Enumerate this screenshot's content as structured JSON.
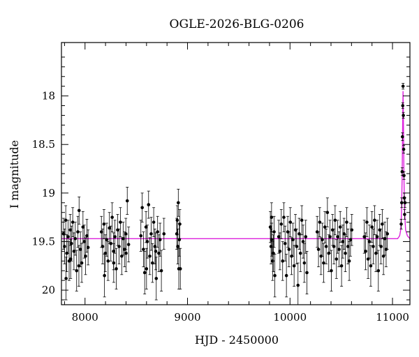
{
  "chart_data": {
    "type": "scatter",
    "title": "OGLE-2026-BLG-0206",
    "xlabel": "HJD - 2450000",
    "ylabel": "I magnitude",
    "xlim": [
      7770,
      11170
    ],
    "ylim": [
      20.15,
      17.45
    ],
    "y_inverted": true,
    "x_ticks": [
      8000,
      9000,
      10000,
      11000
    ],
    "x_tick_labels": [
      "8000",
      "9000",
      "10000",
      "11000"
    ],
    "y_ticks": [
      18,
      18.5,
      19,
      19.5,
      20
    ],
    "y_tick_labels": [
      "18",
      "18.5",
      "19",
      "19.5",
      "20"
    ],
    "grid": false,
    "legend": "none",
    "baseline_magnitude": 19.47,
    "series": [
      {
        "kind": "points_with_errorbars",
        "color": "#000000",
        "points": [
          {
            "x": 7790,
            "y": 19.42,
            "err": 0.16
          },
          {
            "x": 7800,
            "y": 19.55,
            "err": 0.18
          },
          {
            "x": 7812,
            "y": 19.28,
            "err": 0.15
          },
          {
            "x": 7822,
            "y": 19.62,
            "err": 0.19
          },
          {
            "x": 7834,
            "y": 19.45,
            "err": 0.17
          },
          {
            "x": 7845,
            "y": 19.7,
            "err": 0.2
          },
          {
            "x": 7856,
            "y": 19.38,
            "err": 0.16
          },
          {
            "x": 7868,
            "y": 19.52,
            "err": 0.18
          },
          {
            "x": 7880,
            "y": 19.3,
            "err": 0.15
          },
          {
            "x": 7892,
            "y": 19.6,
            "err": 0.19
          },
          {
            "x": 7905,
            "y": 19.47,
            "err": 0.17
          },
          {
            "x": 7918,
            "y": 19.8,
            "err": 0.21
          },
          {
            "x": 7930,
            "y": 19.4,
            "err": 0.16
          },
          {
            "x": 7942,
            "y": 19.18,
            "err": 0.14
          },
          {
            "x": 7955,
            "y": 19.58,
            "err": 0.18
          },
          {
            "x": 7968,
            "y": 19.72,
            "err": 0.2
          },
          {
            "x": 7980,
            "y": 19.35,
            "err": 0.16
          },
          {
            "x": 7993,
            "y": 19.5,
            "err": 0.17
          },
          {
            "x": 8005,
            "y": 19.65,
            "err": 0.19
          },
          {
            "x": 8018,
            "y": 19.44,
            "err": 0.17
          },
          {
            "x": 8030,
            "y": 19.56,
            "err": 0.18
          },
          {
            "x": 7815,
            "y": 19.88,
            "err": 0.22
          },
          {
            "x": 7860,
            "y": 19.68,
            "err": 0.2
          },
          {
            "x": 7940,
            "y": 19.75,
            "err": 0.21
          },
          {
            "x": 8160,
            "y": 19.4,
            "err": 0.16
          },
          {
            "x": 8172,
            "y": 19.55,
            "err": 0.18
          },
          {
            "x": 8185,
            "y": 19.32,
            "err": 0.15
          },
          {
            "x": 8198,
            "y": 19.62,
            "err": 0.19
          },
          {
            "x": 8212,
            "y": 19.48,
            "err": 0.17
          },
          {
            "x": 8225,
            "y": 19.7,
            "err": 0.2
          },
          {
            "x": 8238,
            "y": 19.36,
            "err": 0.16
          },
          {
            "x": 8252,
            "y": 19.52,
            "err": 0.18
          },
          {
            "x": 8265,
            "y": 19.25,
            "err": 0.15
          },
          {
            "x": 8278,
            "y": 19.6,
            "err": 0.19
          },
          {
            "x": 8292,
            "y": 19.45,
            "err": 0.17
          },
          {
            "x": 8305,
            "y": 19.78,
            "err": 0.21
          },
          {
            "x": 8318,
            "y": 19.38,
            "err": 0.16
          },
          {
            "x": 8332,
            "y": 19.55,
            "err": 0.18
          },
          {
            "x": 8345,
            "y": 19.3,
            "err": 0.15
          },
          {
            "x": 8358,
            "y": 19.65,
            "err": 0.19
          },
          {
            "x": 8372,
            "y": 19.47,
            "err": 0.17
          },
          {
            "x": 8385,
            "y": 19.58,
            "err": 0.18
          },
          {
            "x": 8398,
            "y": 19.42,
            "err": 0.16
          },
          {
            "x": 8412,
            "y": 19.08,
            "err": 0.14
          },
          {
            "x": 8425,
            "y": 19.53,
            "err": 0.18
          },
          {
            "x": 8190,
            "y": 19.85,
            "err": 0.22
          },
          {
            "x": 8280,
            "y": 19.72,
            "err": 0.2
          },
          {
            "x": 8400,
            "y": 19.62,
            "err": 0.19
          },
          {
            "x": 8545,
            "y": 19.44,
            "err": 0.16
          },
          {
            "x": 8558,
            "y": 19.15,
            "err": 0.15
          },
          {
            "x": 8570,
            "y": 19.58,
            "err": 0.18
          },
          {
            "x": 8582,
            "y": 19.82,
            "err": 0.22
          },
          {
            "x": 8595,
            "y": 19.35,
            "err": 0.16
          },
          {
            "x": 8608,
            "y": 19.5,
            "err": 0.17
          },
          {
            "x": 8620,
            "y": 19.12,
            "err": 0.14
          },
          {
            "x": 8632,
            "y": 19.65,
            "err": 0.19
          },
          {
            "x": 8645,
            "y": 19.42,
            "err": 0.17
          },
          {
            "x": 8658,
            "y": 19.72,
            "err": 0.2
          },
          {
            "x": 8670,
            "y": 19.3,
            "err": 0.15
          },
          {
            "x": 8682,
            "y": 19.55,
            "err": 0.18
          },
          {
            "x": 8695,
            "y": 19.88,
            "err": 0.22
          },
          {
            "x": 8708,
            "y": 19.4,
            "err": 0.16
          },
          {
            "x": 8720,
            "y": 19.62,
            "err": 0.19
          },
          {
            "x": 8732,
            "y": 19.48,
            "err": 0.17
          },
          {
            "x": 8745,
            "y": 19.8,
            "err": 0.21
          },
          {
            "x": 8770,
            "y": 19.42,
            "err": 0.16
          },
          {
            "x": 8600,
            "y": 19.78,
            "err": 0.21
          },
          {
            "x": 8690,
            "y": 19.6,
            "err": 0.19
          },
          {
            "x": 8895,
            "y": 19.42,
            "err": 0.16
          },
          {
            "x": 8900,
            "y": 19.28,
            "err": 0.15
          },
          {
            "x": 8905,
            "y": 19.55,
            "err": 0.18
          },
          {
            "x": 8910,
            "y": 19.1,
            "err": 0.14
          },
          {
            "x": 8915,
            "y": 19.78,
            "err": 0.21
          },
          {
            "x": 8920,
            "y": 19.48,
            "err": 0.17
          },
          {
            "x": 8925,
            "y": 19.32,
            "err": 0.15
          },
          {
            "x": 8930,
            "y": 19.78,
            "err": 0.21
          },
          {
            "x": 9808,
            "y": 19.35,
            "err": 0.16
          },
          {
            "x": 9815,
            "y": 19.55,
            "err": 0.18
          },
          {
            "x": 9822,
            "y": 19.48,
            "err": 0.17
          },
          {
            "x": 9830,
            "y": 19.7,
            "err": 0.2
          },
          {
            "x": 9838,
            "y": 19.62,
            "err": 0.19
          },
          {
            "x": 9845,
            "y": 19.4,
            "err": 0.16
          },
          {
            "x": 9852,
            "y": 19.85,
            "err": 0.22
          },
          {
            "x": 9820,
            "y": 19.25,
            "err": 0.15
          },
          {
            "x": 9890,
            "y": 19.45,
            "err": 0.17
          },
          {
            "x": 9902,
            "y": 19.6,
            "err": 0.19
          },
          {
            "x": 9915,
            "y": 19.32,
            "err": 0.15
          },
          {
            "x": 9928,
            "y": 19.7,
            "err": 0.2
          },
          {
            "x": 9940,
            "y": 19.25,
            "err": 0.15
          },
          {
            "x": 9952,
            "y": 19.52,
            "err": 0.18
          },
          {
            "x": 9965,
            "y": 19.85,
            "err": 0.22
          },
          {
            "x": 9978,
            "y": 19.4,
            "err": 0.16
          },
          {
            "x": 9990,
            "y": 19.58,
            "err": 0.18
          },
          {
            "x": 10003,
            "y": 19.3,
            "err": 0.15
          },
          {
            "x": 10015,
            "y": 19.65,
            "err": 0.19
          },
          {
            "x": 10028,
            "y": 19.48,
            "err": 0.17
          },
          {
            "x": 10040,
            "y": 19.75,
            "err": 0.21
          },
          {
            "x": 10053,
            "y": 19.38,
            "err": 0.16
          },
          {
            "x": 10065,
            "y": 19.55,
            "err": 0.18
          },
          {
            "x": 10078,
            "y": 19.95,
            "err": 0.23
          },
          {
            "x": 10090,
            "y": 19.42,
            "err": 0.16
          },
          {
            "x": 10102,
            "y": 19.62,
            "err": 0.19
          },
          {
            "x": 10115,
            "y": 19.28,
            "err": 0.15
          },
          {
            "x": 10128,
            "y": 19.5,
            "err": 0.17
          },
          {
            "x": 10140,
            "y": 19.72,
            "err": 0.2
          },
          {
            "x": 10153,
            "y": 19.45,
            "err": 0.17
          },
          {
            "x": 10165,
            "y": 19.82,
            "err": 0.22
          },
          {
            "x": 10265,
            "y": 19.4,
            "err": 0.16
          },
          {
            "x": 10278,
            "y": 19.58,
            "err": 0.18
          },
          {
            "x": 10290,
            "y": 19.3,
            "err": 0.15
          },
          {
            "x": 10303,
            "y": 19.65,
            "err": 0.19
          },
          {
            "x": 10315,
            "y": 19.48,
            "err": 0.17
          },
          {
            "x": 10328,
            "y": 19.72,
            "err": 0.2
          },
          {
            "x": 10340,
            "y": 19.35,
            "err": 0.16
          },
          {
            "x": 10353,
            "y": 19.55,
            "err": 0.18
          },
          {
            "x": 10365,
            "y": 19.2,
            "err": 0.15
          },
          {
            "x": 10378,
            "y": 19.62,
            "err": 0.19
          },
          {
            "x": 10390,
            "y": 19.45,
            "err": 0.17
          },
          {
            "x": 10403,
            "y": 19.8,
            "err": 0.21
          },
          {
            "x": 10415,
            "y": 19.38,
            "err": 0.16
          },
          {
            "x": 10428,
            "y": 19.55,
            "err": 0.18
          },
          {
            "x": 10440,
            "y": 19.28,
            "err": 0.15
          },
          {
            "x": 10453,
            "y": 19.68,
            "err": 0.2
          },
          {
            "x": 10465,
            "y": 19.45,
            "err": 0.17
          },
          {
            "x": 10478,
            "y": 19.58,
            "err": 0.18
          },
          {
            "x": 10490,
            "y": 19.35,
            "err": 0.16
          },
          {
            "x": 10503,
            "y": 19.75,
            "err": 0.21
          },
          {
            "x": 10515,
            "y": 19.5,
            "err": 0.17
          },
          {
            "x": 10528,
            "y": 19.42,
            "err": 0.16
          },
          {
            "x": 10540,
            "y": 19.62,
            "err": 0.19
          },
          {
            "x": 10553,
            "y": 19.3,
            "err": 0.15
          },
          {
            "x": 10565,
            "y": 19.55,
            "err": 0.18
          },
          {
            "x": 10578,
            "y": 19.7,
            "err": 0.2
          },
          {
            "x": 10590,
            "y": 19.48,
            "err": 0.17
          },
          {
            "x": 10603,
            "y": 19.38,
            "err": 0.16
          },
          {
            "x": 10725,
            "y": 19.45,
            "err": 0.17
          },
          {
            "x": 10738,
            "y": 19.6,
            "err": 0.19
          },
          {
            "x": 10750,
            "y": 19.3,
            "err": 0.15
          },
          {
            "x": 10762,
            "y": 19.68,
            "err": 0.2
          },
          {
            "x": 10775,
            "y": 19.5,
            "err": 0.17
          },
          {
            "x": 10788,
            "y": 19.75,
            "err": 0.21
          },
          {
            "x": 10800,
            "y": 19.35,
            "err": 0.16
          },
          {
            "x": 10812,
            "y": 19.55,
            "err": 0.18
          },
          {
            "x": 10825,
            "y": 19.28,
            "err": 0.15
          },
          {
            "x": 10838,
            "y": 19.62,
            "err": 0.19
          },
          {
            "x": 10850,
            "y": 19.45,
            "err": 0.17
          },
          {
            "x": 10862,
            "y": 19.8,
            "err": 0.21
          },
          {
            "x": 10875,
            "y": 19.38,
            "err": 0.16
          },
          {
            "x": 10888,
            "y": 19.55,
            "err": 0.18
          },
          {
            "x": 10900,
            "y": 19.32,
            "err": 0.15
          },
          {
            "x": 10912,
            "y": 19.65,
            "err": 0.19
          },
          {
            "x": 10925,
            "y": 19.47,
            "err": 0.17
          },
          {
            "x": 10938,
            "y": 19.58,
            "err": 0.18
          },
          {
            "x": 10950,
            "y": 19.42,
            "err": 0.16
          },
          {
            "x": 11085,
            "y": 19.32,
            "err": 0.05
          },
          {
            "x": 11090,
            "y": 19.1,
            "err": 0.05
          },
          {
            "x": 11094,
            "y": 18.78,
            "err": 0.04
          },
          {
            "x": 11097,
            "y": 18.42,
            "err": 0.04
          },
          {
            "x": 11100,
            "y": 18.1,
            "err": 0.03
          },
          {
            "x": 11103,
            "y": 17.9,
            "err": 0.03
          },
          {
            "x": 11106,
            "y": 18.2,
            "err": 0.03
          },
          {
            "x": 11109,
            "y": 18.55,
            "err": 0.04
          },
          {
            "x": 11112,
            "y": 18.82,
            "err": 0.04
          },
          {
            "x": 11115,
            "y": 19.05,
            "err": 0.05
          },
          {
            "x": 11118,
            "y": 19.22,
            "err": 0.05
          },
          {
            "x": 11122,
            "y": 19.1,
            "err": 0.05
          }
        ]
      },
      {
        "kind": "model_curve",
        "color": "#dd22dd",
        "points": [
          {
            "x": 7770,
            "y": 19.47
          },
          {
            "x": 11050,
            "y": 19.47
          },
          {
            "x": 11070,
            "y": 19.44
          },
          {
            "x": 11080,
            "y": 19.38
          },
          {
            "x": 11088,
            "y": 19.2
          },
          {
            "x": 11094,
            "y": 18.85
          },
          {
            "x": 11099,
            "y": 18.3
          },
          {
            "x": 11103,
            "y": 17.95
          },
          {
            "x": 11107,
            "y": 18.3
          },
          {
            "x": 11112,
            "y": 18.85
          },
          {
            "x": 11118,
            "y": 19.2
          },
          {
            "x": 11128,
            "y": 19.38
          },
          {
            "x": 11145,
            "y": 19.44
          },
          {
            "x": 11170,
            "y": 19.47
          }
        ]
      }
    ]
  }
}
